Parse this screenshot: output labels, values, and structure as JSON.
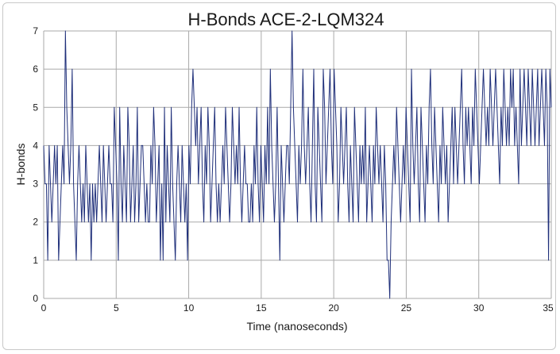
{
  "chart_data": {
    "type": "line",
    "title": "H-Bonds ACE-2-LQM324",
    "xlabel": "Time (nanoseconds)",
    "ylabel": "H-bonds",
    "xlim": [
      0,
      35
    ],
    "ylim": [
      0,
      7
    ],
    "x_ticks": [
      0,
      5,
      10,
      15,
      20,
      25,
      30,
      35
    ],
    "y_ticks": [
      0,
      1,
      2,
      3,
      4,
      5,
      6,
      7
    ],
    "grid": true,
    "legend": "none",
    "series": [
      {
        "color": "#1f2f7a",
        "x_step": 0.1,
        "values": [
          4,
          3,
          3,
          1,
          4,
          3,
          2,
          3,
          4,
          3,
          4,
          1,
          2,
          3,
          4,
          3,
          7,
          5,
          4,
          3,
          4,
          6,
          3,
          2,
          1,
          3,
          4,
          3,
          2,
          3,
          2,
          4,
          3,
          2,
          3,
          1,
          3,
          2,
          3,
          2,
          3,
          4,
          3,
          2,
          4,
          3,
          2,
          3,
          4,
          3,
          3,
          2,
          5,
          4,
          3,
          1,
          5,
          3,
          2,
          4,
          3,
          2,
          5,
          4,
          2,
          3,
          4,
          2,
          3,
          5,
          2,
          3,
          4,
          4,
          3,
          2,
          3,
          2,
          2,
          4,
          3,
          5,
          4,
          2,
          3,
          4,
          1,
          3,
          1,
          5,
          2,
          4,
          3,
          2,
          5,
          3,
          2,
          1,
          3,
          4,
          3,
          2,
          4,
          3,
          2,
          3,
          1,
          4,
          3,
          5,
          6,
          5,
          4,
          5,
          3,
          4,
          5,
          3,
          2,
          4,
          3,
          5,
          4,
          2,
          3,
          4,
          5,
          3,
          2,
          3,
          2,
          3,
          4,
          3,
          5,
          4,
          3,
          2,
          3,
          5,
          4,
          3,
          4,
          3,
          5,
          3,
          2,
          3,
          4,
          3,
          3,
          2,
          2,
          3,
          2,
          4,
          3,
          5,
          3,
          2,
          4,
          3,
          2,
          4,
          3,
          5,
          3,
          6,
          4,
          3,
          2,
          3,
          5,
          3,
          1,
          4,
          3,
          2,
          3,
          4,
          4,
          3,
          5,
          7,
          5,
          4,
          3,
          2,
          4,
          3,
          4,
          6,
          4,
          3,
          4,
          5,
          3,
          2,
          4,
          6,
          3,
          2,
          5,
          4,
          3,
          2,
          6,
          5,
          3,
          4,
          5,
          6,
          4,
          3,
          6,
          5,
          4,
          2,
          3,
          5,
          4,
          3,
          4,
          5,
          3,
          2,
          4,
          3,
          2,
          5,
          4,
          3,
          2,
          4,
          3,
          4,
          3,
          5,
          2,
          3,
          4,
          3,
          2,
          4,
          3,
          5,
          4,
          3,
          4,
          3,
          2,
          4,
          3,
          1,
          1,
          0,
          2,
          3,
          4,
          3,
          5,
          4,
          3,
          2,
          3,
          4,
          3,
          5,
          4,
          3,
          2,
          6,
          4,
          3,
          4,
          5,
          3,
          2,
          5,
          4,
          3,
          2,
          4,
          3,
          5,
          6,
          4,
          3,
          5,
          4,
          3,
          2,
          4,
          3,
          5,
          4,
          3,
          4,
          2,
          3,
          4,
          5,
          3,
          5,
          4,
          3,
          4,
          5,
          6,
          4,
          3,
          5,
          4,
          5,
          4,
          3,
          5,
          4,
          6,
          5,
          4,
          3,
          4,
          5,
          6,
          5,
          4,
          5,
          4,
          6,
          5,
          4,
          5,
          6,
          5,
          4,
          3,
          5,
          4,
          6,
          5,
          4,
          5,
          4,
          6,
          5,
          6,
          4,
          5,
          4,
          3,
          6,
          4,
          5,
          6,
          5,
          4,
          6,
          5,
          4,
          6,
          5,
          4,
          5,
          6,
          4,
          5,
          6,
          5,
          4,
          6,
          5,
          1,
          6,
          5
        ]
      }
    ]
  }
}
